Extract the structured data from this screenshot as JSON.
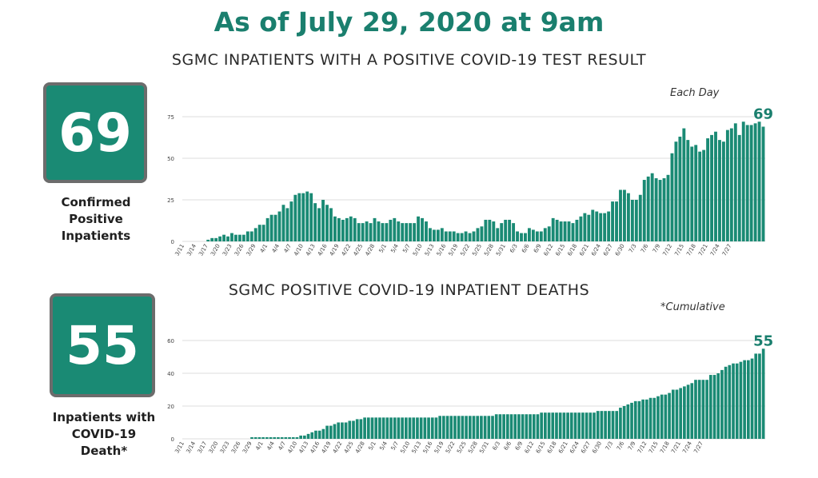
{
  "headline": "As of July 29, 2020 at 9am",
  "colors": {
    "brand": "#1a8a74",
    "bar": "#1a8a74",
    "text": "#1a7f6e"
  },
  "inpatients": {
    "title": "SGMC INPATIENTS WITH A POSITIVE COVID-19 TEST RESULT",
    "badge_value": "69",
    "badge_label": [
      "Confirmed",
      "Positive",
      "Inpatients"
    ],
    "note": "Each Day",
    "end_label": "69"
  },
  "deaths": {
    "title": "SGMC POSITIVE COVID-19 INPATIENT DEATHS",
    "badge_value": "55",
    "badge_label": [
      "Inpatients with",
      "COVID-19",
      "Death*"
    ],
    "note": "*Cumulative",
    "end_label": "55"
  },
  "chart_data": [
    {
      "type": "bar",
      "title": "SGMC INPATIENTS WITH A POSITIVE COVID-19 TEST RESULT",
      "ylim": [
        0,
        75
      ],
      "yticks": [
        0,
        25,
        50,
        75
      ],
      "grid": true,
      "tick_labels": [
        "3/11",
        "3/14",
        "3/17",
        "3/20",
        "3/23",
        "3/26",
        "3/29",
        "4/1",
        "4/4",
        "4/7",
        "4/10",
        "4/13",
        "4/16",
        "4/19",
        "4/22",
        "4/25",
        "4/28",
        "5/1",
        "5/4",
        "5/7",
        "5/10",
        "5/13",
        "5/16",
        "5/19",
        "5/22",
        "5/25",
        "5/28",
        "5/31",
        "6/3",
        "6/6",
        "6/9",
        "6/12",
        "6/15",
        "6/18",
        "6/21",
        "6/24",
        "6/27",
        "6/30",
        "7/3",
        "7/6",
        "7/9",
        "7/12",
        "7/15",
        "7/18",
        "7/21",
        "7/24",
        "7/27"
      ],
      "x_start": "3/11",
      "x_end": "7/29",
      "values": [
        0,
        0,
        0,
        0,
        0,
        0,
        1,
        2,
        2,
        3,
        4,
        3,
        5,
        4,
        4,
        4,
        6,
        6,
        8,
        10,
        10,
        14,
        16,
        16,
        18,
        22,
        20,
        24,
        28,
        29,
        29,
        30,
        29,
        23,
        20,
        25,
        22,
        20,
        15,
        14,
        13,
        14,
        15,
        14,
        11,
        11,
        12,
        11,
        14,
        12,
        11,
        11,
        13,
        14,
        12,
        11,
        11,
        11,
        11,
        15,
        14,
        12,
        8,
        7,
        7,
        8,
        6,
        6,
        6,
        5,
        5,
        6,
        5,
        6,
        8,
        9,
        13,
        13,
        12,
        8,
        11,
        13,
        13,
        11,
        6,
        5,
        5,
        8,
        7,
        6,
        6,
        8,
        9,
        14,
        13,
        12,
        12,
        12,
        11,
        13,
        15,
        17,
        16,
        19,
        18,
        17,
        17,
        18,
        24,
        24,
        31,
        31,
        29,
        25,
        25,
        28,
        37,
        39,
        41,
        38,
        37,
        38,
        40,
        53,
        60,
        63,
        68,
        61,
        57,
        58,
        54,
        55,
        62,
        64,
        66,
        61,
        60,
        67,
        68,
        71,
        64,
        72,
        70,
        70,
        71,
        72,
        69
      ]
    },
    {
      "type": "bar",
      "title": "SGMC POSITIVE COVID-19 INPATIENT DEATHS",
      "ylim": [
        0,
        60
      ],
      "yticks": [
        0,
        20,
        40,
        60
      ],
      "grid": true,
      "tick_labels": [
        "3/11",
        "3/14",
        "3/17",
        "3/20",
        "3/23",
        "3/26",
        "3/29",
        "4/1",
        "4/4",
        "4/7",
        "4/10",
        "4/13",
        "4/16",
        "4/19",
        "4/22",
        "4/25",
        "4/28",
        "5/1",
        "5/4",
        "5/7",
        "5/10",
        "5/13",
        "5/16",
        "5/19",
        "5/22",
        "5/25",
        "5/28",
        "5/31",
        "6/3",
        "6/6",
        "6/9",
        "6/12",
        "6/15",
        "6/18",
        "6/21",
        "6/24",
        "6/27",
        "6/30",
        "7/3",
        "7/6",
        "7/9",
        "7/12",
        "7/15",
        "7/18",
        "7/21",
        "7/24",
        "7/27"
      ],
      "x_start": "3/11",
      "x_end": "7/29",
      "values": [
        0,
        0,
        0,
        0,
        0,
        0,
        0,
        0,
        0,
        0,
        0,
        0,
        0,
        0,
        0,
        0,
        0,
        0,
        1,
        1,
        1,
        1,
        1,
        1,
        1,
        1,
        1,
        1,
        1,
        1,
        1,
        2,
        2,
        3,
        4,
        5,
        5,
        6,
        8,
        8,
        9,
        10,
        10,
        10,
        11,
        11,
        12,
        12,
        13,
        13,
        13,
        13,
        13,
        13,
        13,
        13,
        13,
        13,
        13,
        13,
        13,
        13,
        13,
        13,
        13,
        13,
        13,
        13,
        14,
        14,
        14,
        14,
        14,
        14,
        14,
        14,
        14,
        14,
        14,
        14,
        14,
        14,
        14,
        15,
        15,
        15,
        15,
        15,
        15,
        15,
        15,
        15,
        15,
        15,
        15,
        16,
        16,
        16,
        16,
        16,
        16,
        16,
        16,
        16,
        16,
        16,
        16,
        16,
        16,
        16,
        17,
        17,
        17,
        17,
        17,
        17,
        19,
        20,
        21,
        22,
        23,
        23,
        24,
        24,
        25,
        25,
        26,
        27,
        27,
        28,
        30,
        30,
        31,
        32,
        33,
        34,
        36,
        36,
        36,
        36,
        39,
        39,
        40,
        42,
        44,
        45,
        46,
        46,
        47,
        48,
        48,
        49,
        52,
        52,
        55
      ]
    }
  ]
}
